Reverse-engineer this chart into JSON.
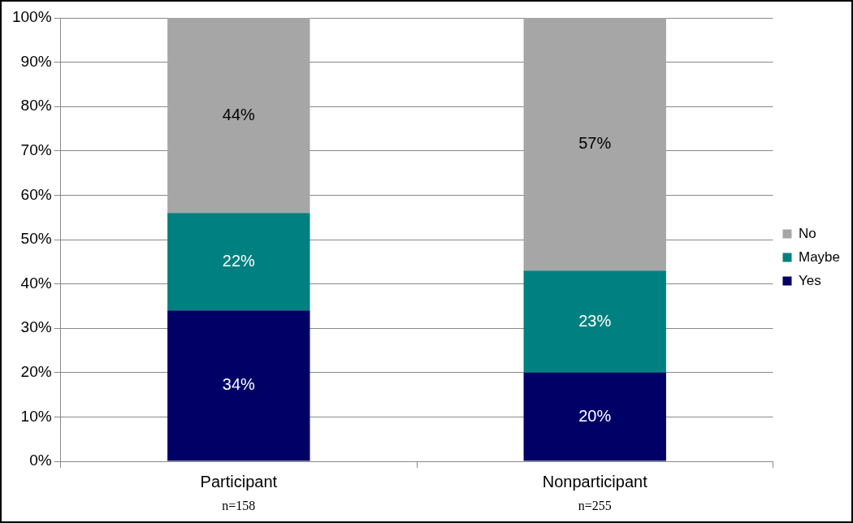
{
  "chart_data": {
    "type": "bar",
    "stacked": true,
    "categories": [
      "Participant",
      "Nonparticipant"
    ],
    "series": [
      {
        "name": "Yes",
        "color": "#000066",
        "values": [
          34,
          20
        ],
        "value_labels": [
          "34%",
          "20%"
        ]
      },
      {
        "name": "Maybe",
        "color": "#008080",
        "values": [
          22,
          23
        ],
        "value_labels": [
          "22%",
          "23%"
        ]
      },
      {
        "name": "No",
        "color": "#a6a6a6",
        "values": [
          44,
          57
        ],
        "value_labels": [
          "44%",
          "57%"
        ]
      }
    ],
    "ylim": [
      0,
      100
    ],
    "yticks": [
      {
        "value": 0,
        "label": "0%"
      },
      {
        "value": 10,
        "label": "10%"
      },
      {
        "value": 20,
        "label": "20%"
      },
      {
        "value": 30,
        "label": "30%"
      },
      {
        "value": 40,
        "label": "40%"
      },
      {
        "value": 50,
        "label": "50%"
      },
      {
        "value": 60,
        "label": "60%"
      },
      {
        "value": 70,
        "label": "70%"
      },
      {
        "value": 80,
        "label": "80%"
      },
      {
        "value": 90,
        "label": "90%"
      },
      {
        "value": 100,
        "label": "100%"
      }
    ],
    "grid": "y",
    "legend": "right",
    "annotations": [
      "n=158",
      "n=255"
    ]
  }
}
